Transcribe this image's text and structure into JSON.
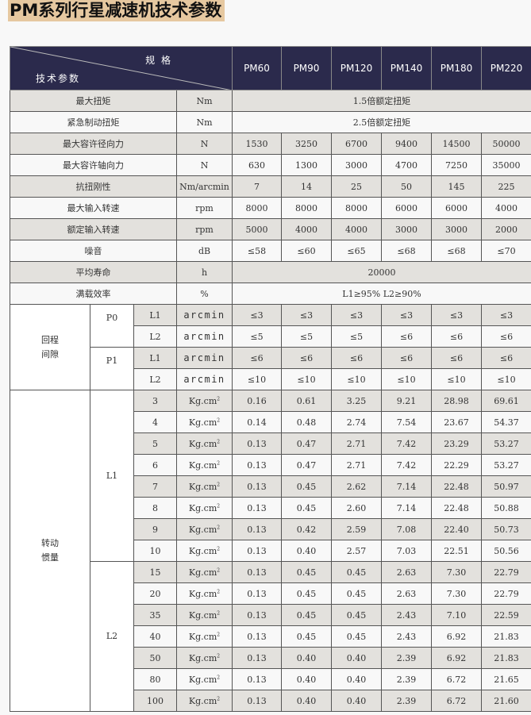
{
  "title": "PM系列行星减速机技术参数",
  "header": {
    "spec_label": "规 格",
    "param_label": "技术参数",
    "models": [
      "PM60",
      "PM90",
      "PM120",
      "PM140",
      "PM180",
      "PM220"
    ]
  },
  "colors": {
    "header_bg": "#2b2a4c",
    "title_bg": "#e6c8a0",
    "shade": "#e3e1dd"
  },
  "rows": [
    {
      "param": "最大扭矩",
      "unit": "Nm",
      "merged": "1.5倍额定扭矩"
    },
    {
      "param": "紧急制动扭矩",
      "unit": "Nm",
      "merged": "2.5倍额定扭矩"
    },
    {
      "param": "最大容许径向力",
      "unit": "N",
      "values": [
        "1530",
        "3250",
        "6700",
        "9400",
        "14500",
        "50000"
      ]
    },
    {
      "param": "最大容许轴向力",
      "unit": "N",
      "values": [
        "630",
        "1300",
        "3000",
        "4700",
        "7250",
        "35000"
      ]
    },
    {
      "param": "抗扭刚性",
      "unit": "Nm/arcmin",
      "values": [
        "7",
        "14",
        "25",
        "50",
        "145",
        "225"
      ]
    },
    {
      "param": "最大输入转速",
      "unit": "rpm",
      "values": [
        "8000",
        "8000",
        "8000",
        "6000",
        "6000",
        "4000"
      ]
    },
    {
      "param": "额定输入转速",
      "unit": "rpm",
      "values": [
        "5000",
        "4000",
        "4000",
        "3000",
        "3000",
        "2000"
      ]
    },
    {
      "param": "噪音",
      "unit": "dB",
      "values": [
        "≤58",
        "≤60",
        "≤65",
        "≤68",
        "≤68",
        "≤70"
      ]
    },
    {
      "param": "平均寿命",
      "unit": "h",
      "merged": "20000"
    },
    {
      "param": "满载效率",
      "unit": "%",
      "merged": "L1≥95%    L2≥90%"
    }
  ],
  "backlash": {
    "label": "回程\n间隙",
    "groups": [
      {
        "name": "P0",
        "rows": [
          {
            "stage": "L1",
            "unit": "arcmin",
            "values": [
              "≤3",
              "≤3",
              "≤3",
              "≤3",
              "≤3",
              "≤3"
            ]
          },
          {
            "stage": "L2",
            "unit": "arcmin",
            "values": [
              "≤5",
              "≤5",
              "≤5",
              "≤6",
              "≤6",
              "≤6"
            ]
          }
        ]
      },
      {
        "name": "P1",
        "rows": [
          {
            "stage": "L1",
            "unit": "arcmin",
            "values": [
              "≤6",
              "≤6",
              "≤6",
              "≤6",
              "≤6",
              "≤6"
            ]
          },
          {
            "stage": "L2",
            "unit": "arcmin",
            "values": [
              "≤10",
              "≤10",
              "≤10",
              "≤10",
              "≤10",
              "≤10"
            ]
          }
        ]
      }
    ]
  },
  "inertia": {
    "label": "转动\n惯量",
    "unit": "Kg.cm",
    "unit_sup": "2",
    "groups": [
      {
        "name": "L1",
        "rows": [
          {
            "ratio": "3",
            "values": [
              "0.16",
              "0.61",
              "3.25",
              "9.21",
              "28.98",
              "69.61"
            ]
          },
          {
            "ratio": "4",
            "values": [
              "0.14",
              "0.48",
              "2.74",
              "7.54",
              "23.67",
              "54.37"
            ]
          },
          {
            "ratio": "5",
            "values": [
              "0.13",
              "0.47",
              "2.71",
              "7.42",
              "23.29",
              "53.27"
            ]
          },
          {
            "ratio": "6",
            "values": [
              "0.13",
              "0.47",
              "2.71",
              "7.42",
              "22.29",
              "53.27"
            ]
          },
          {
            "ratio": "7",
            "values": [
              "0.13",
              "0.45",
              "2.62",
              "7.14",
              "22.48",
              "50.97"
            ]
          },
          {
            "ratio": "8",
            "values": [
              "0.13",
              "0.45",
              "2.60",
              "7.14",
              "22.48",
              "50.88"
            ]
          },
          {
            "ratio": "9",
            "values": [
              "0.13",
              "0.42",
              "2.59",
              "7.08",
              "22.40",
              "50.73"
            ]
          },
          {
            "ratio": "10",
            "values": [
              "0.13",
              "0.40",
              "2.57",
              "7.03",
              "22.51",
              "50.56"
            ]
          }
        ]
      },
      {
        "name": "L2",
        "rows": [
          {
            "ratio": "15",
            "values": [
              "0.13",
              "0.45",
              "0.45",
              "2.63",
              "7.30",
              "22.79"
            ]
          },
          {
            "ratio": "20",
            "values": [
              "0.13",
              "0.45",
              "0.45",
              "2.63",
              "7.30",
              "22.79"
            ]
          },
          {
            "ratio": "35",
            "values": [
              "0.13",
              "0.45",
              "0.45",
              "2.43",
              "7.10",
              "22.59"
            ]
          },
          {
            "ratio": "40",
            "values": [
              "0.13",
              "0.45",
              "0.45",
              "2.43",
              "6.92",
              "21.83"
            ]
          },
          {
            "ratio": "50",
            "values": [
              "0.13",
              "0.40",
              "0.40",
              "2.39",
              "6.92",
              "21.83"
            ]
          },
          {
            "ratio": "80",
            "values": [
              "0.13",
              "0.40",
              "0.40",
              "2.39",
              "6.72",
              "21.65"
            ]
          },
          {
            "ratio": "100",
            "values": [
              "0.13",
              "0.40",
              "0.40",
              "2.39",
              "6.72",
              "21.60"
            ]
          }
        ]
      }
    ]
  }
}
